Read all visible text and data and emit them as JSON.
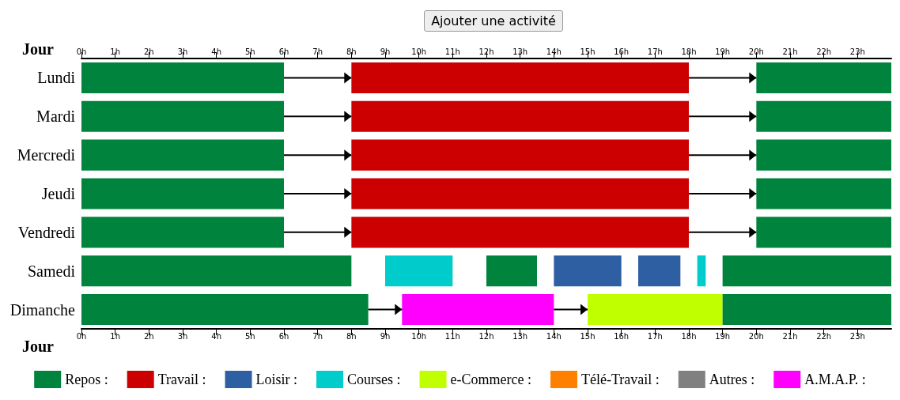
{
  "chart_data": {
    "type": "bar",
    "orientation": "horizontal",
    "ylabel": "Jour",
    "annotations": [
      "Ajouter une activité"
    ],
    "legend": "bottom",
    "categories": [
      "Lundi",
      "Mardi",
      "Mercredi",
      "Jeudi",
      "Vendredi",
      "Samedi",
      "Dimanche"
    ],
    "xlim": [
      0,
      24
    ],
    "xticks": [
      {
        "value": 0,
        "label": "0h"
      },
      {
        "value": 1,
        "label": "1h"
      },
      {
        "value": 2,
        "label": "2h"
      },
      {
        "value": 3,
        "label": "3h"
      },
      {
        "value": 4,
        "label": "4h"
      },
      {
        "value": 5,
        "label": "5h"
      },
      {
        "value": 6,
        "label": "6h"
      },
      {
        "value": 7,
        "label": "7h"
      },
      {
        "value": 8,
        "label": "8h"
      },
      {
        "value": 9,
        "label": "9h"
      },
      {
        "value": 10,
        "label": "10h"
      },
      {
        "value": 11,
        "label": "11h"
      },
      {
        "value": 12,
        "label": "12h"
      },
      {
        "value": 13,
        "label": "13h"
      },
      {
        "value": 14,
        "label": "14h"
      },
      {
        "value": 15,
        "label": "15h"
      },
      {
        "value": 16,
        "label": "16h"
      },
      {
        "value": 17,
        "label": "17h"
      },
      {
        "value": 18,
        "label": "18h"
      },
      {
        "value": 19,
        "label": "19h"
      },
      {
        "value": 20,
        "label": "20h"
      },
      {
        "value": 21,
        "label": "21h"
      },
      {
        "value": 22,
        "label": "22h"
      },
      {
        "value": 23,
        "label": "23h"
      }
    ],
    "x2lim": [
      0,
      24
    ],
    "x2ticks": [
      {
        "value": 0,
        "label": "0h"
      },
      {
        "value": 1,
        "label": "1h"
      },
      {
        "value": 2,
        "label": "2h"
      },
      {
        "value": 3,
        "label": "3h"
      },
      {
        "value": 4,
        "label": "4h"
      },
      {
        "value": 5,
        "label": "5h"
      },
      {
        "value": 6,
        "label": "6h"
      },
      {
        "value": 7,
        "label": "7h"
      },
      {
        "value": 8,
        "label": "8h"
      },
      {
        "value": 9,
        "label": "9h"
      },
      {
        "value": 10,
        "label": "10h"
      },
      {
        "value": 11,
        "label": "11h"
      },
      {
        "value": 12,
        "label": "12h"
      },
      {
        "value": 13,
        "label": "13h"
      },
      {
        "value": 14,
        "label": "14h"
      },
      {
        "value": 15,
        "label": "15h"
      },
      {
        "value": 16,
        "label": "16h"
      },
      {
        "value": 17,
        "label": "17h"
      },
      {
        "value": 18,
        "label": "18h"
      },
      {
        "value": 19,
        "label": "19h"
      },
      {
        "value": 20,
        "label": "20h"
      },
      {
        "value": 21,
        "label": "21h"
      },
      {
        "value": 22,
        "label": "22h"
      },
      {
        "value": 23,
        "label": "23h"
      }
    ],
    "series": [
      {
        "name": "Repos :",
        "color": "#00843d",
        "base": [
          0,
          0,
          0,
          0,
          0,
          0,
          0
        ],
        "values": [
          6,
          6,
          6,
          6,
          6,
          8,
          8.5
        ]
      },
      {
        "name": "Travail :",
        "color": "#cc0000",
        "base": [
          8,
          8,
          8,
          8,
          8,
          null,
          null
        ],
        "values": [
          10,
          10,
          10,
          10,
          10,
          null,
          null
        ]
      },
      {
        "name": "Loisir :",
        "color": "#2e5fa3",
        "base": [
          null,
          null,
          null,
          null,
          null,
          14,
          null
        ],
        "values": [
          null,
          null,
          null,
          null,
          null,
          2,
          null
        ]
      },
      {
        "name": "Courses :",
        "color": "#00cccc",
        "base": [
          null,
          null,
          null,
          null,
          null,
          9,
          null
        ],
        "values": [
          null,
          null,
          null,
          null,
          null,
          2,
          null
        ]
      },
      {
        "name": "e-Commerce :",
        "color": "#c0ff00",
        "base": [
          null,
          null,
          null,
          null,
          null,
          null,
          15
        ],
        "values": [
          null,
          null,
          null,
          null,
          null,
          null,
          4
        ]
      },
      {
        "name": "Télé-Travail :",
        "color": "#ff8000",
        "base": [
          null,
          null,
          null,
          null,
          null,
          null,
          null
        ],
        "values": [
          null,
          null,
          null,
          null,
          null,
          null,
          null
        ]
      },
      {
        "name": "Autres :",
        "color": "#808080",
        "base": [
          null,
          null,
          null,
          null,
          null,
          null,
          null
        ],
        "values": [
          null,
          null,
          null,
          null,
          null,
          null,
          null
        ]
      },
      {
        "name": "A.M.A.P. :",
        "color": "#ff00ff",
        "base": [
          null,
          null,
          null,
          null,
          null,
          null,
          9.5
        ],
        "values": [
          null,
          null,
          null,
          null,
          null,
          null,
          4.5
        ]
      },
      {
        "color": "#00843d",
        "base": [
          20,
          20,
          20,
          20,
          20,
          19,
          19
        ],
        "values": [
          4,
          4,
          4,
          4,
          4,
          5,
          5
        ]
      },
      {
        "color": "#00843d",
        "base": [
          null,
          null,
          null,
          null,
          null,
          12,
          null
        ],
        "values": [
          null,
          null,
          null,
          null,
          null,
          1.5,
          null
        ]
      },
      {
        "color": "#2e5fa3",
        "base": [
          null,
          null,
          null,
          null,
          null,
          16.5,
          null
        ],
        "values": [
          null,
          null,
          null,
          null,
          null,
          1.25,
          null
        ]
      },
      {
        "color": "#00cccc",
        "base": [
          null,
          null,
          null,
          null,
          null,
          18.25,
          null
        ],
        "values": [
          null,
          null,
          null,
          null,
          null,
          0.25,
          null
        ]
      },
      {
        "color": "#000000",
        "marker": "triangle",
        "base": [
          6,
          6,
          6,
          6,
          6,
          null,
          8.5
        ],
        "values": [
          2,
          2,
          2,
          2,
          2,
          null,
          1
        ]
      },
      {
        "color": "#000000",
        "marker": "triangle",
        "base": [
          18,
          18,
          18,
          18,
          18,
          null,
          14
        ],
        "values": [
          2,
          2,
          2,
          2,
          2,
          null,
          1
        ]
      }
    ]
  }
}
